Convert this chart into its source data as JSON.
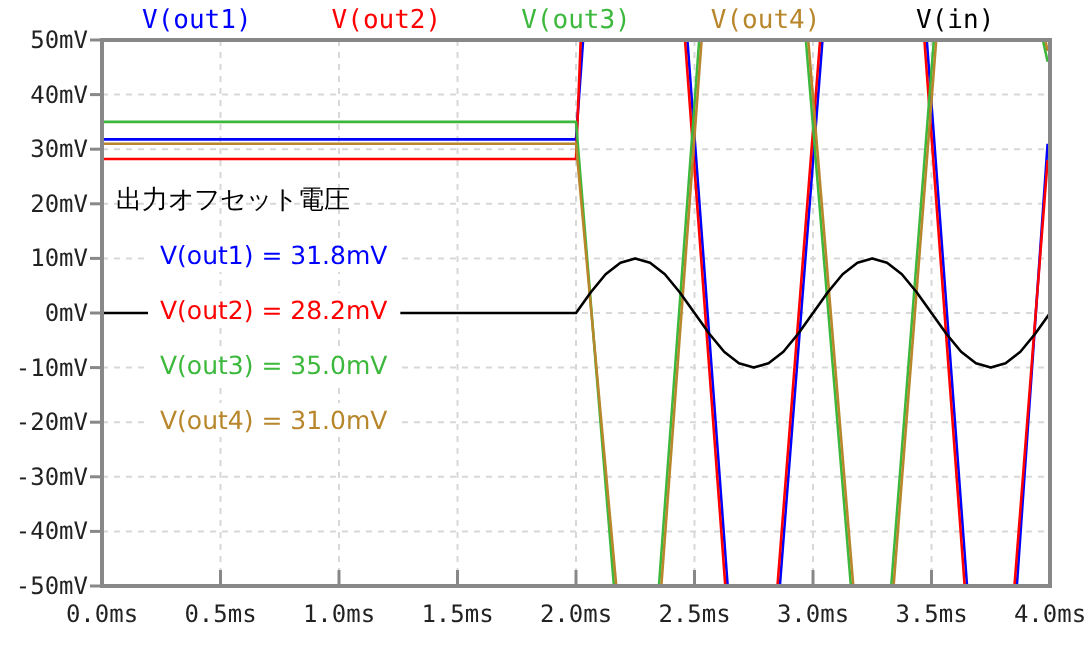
{
  "chart_data": {
    "type": "line",
    "xlim": [
      0,
      4
    ],
    "ylim": [
      -50,
      50
    ],
    "xticks": [
      {
        "value": 0,
        "label": "0.0ms"
      },
      {
        "value": 0.5,
        "label": "0.5ms"
      },
      {
        "value": 1,
        "label": "1.0ms"
      },
      {
        "value": 1.5,
        "label": "1.5ms"
      },
      {
        "value": 2,
        "label": "2.0ms"
      },
      {
        "value": 2.5,
        "label": "2.5ms"
      },
      {
        "value": 3,
        "label": "3.0ms"
      },
      {
        "value": 3.5,
        "label": "3.5ms"
      },
      {
        "value": 4,
        "label": "4.0ms"
      }
    ],
    "yticks": [
      {
        "value": -50,
        "label": "-50mV"
      },
      {
        "value": -40,
        "label": "-40mV"
      },
      {
        "value": -30,
        "label": "-30mV"
      },
      {
        "value": -20,
        "label": "-20mV"
      },
      {
        "value": -10,
        "label": "-10mV"
      },
      {
        "value": 0,
        "label": "0mV"
      },
      {
        "value": 10,
        "label": "10mV"
      },
      {
        "value": 20,
        "label": "20mV"
      },
      {
        "value": 30,
        "label": "30mV"
      },
      {
        "value": 40,
        "label": "40mV"
      },
      {
        "value": 50,
        "label": "50mV"
      }
    ],
    "grid": true,
    "legend": "top",
    "line_style": "solid",
    "annotations": [
      "出力オフセット電圧",
      "V(out1) = 31.8mV",
      "V(out2) = 28.2mV",
      "V(out3) = 35.0mV",
      "V(out4) = 31.0mV"
    ],
    "series": [
      {
        "name": "V(out1)",
        "color": "#0000ff",
        "x": [
          0,
          2.0,
          2.03,
          2.47,
          2.64,
          2.86,
          3.04,
          3.48,
          3.65,
          3.86,
          3.99
        ],
        "values": [
          31.8,
          31.8,
          50,
          50,
          -50,
          -50,
          50,
          50,
          -50,
          -50,
          31
        ]
      },
      {
        "name": "V(out2)",
        "color": "#ff0000",
        "x": [
          0,
          2.0,
          2.02,
          2.46,
          2.63,
          2.85,
          3.03,
          3.47,
          3.64,
          3.85,
          3.99
        ],
        "values": [
          28.2,
          28.2,
          50,
          50,
          -50,
          -50,
          50,
          50,
          -50,
          -50,
          28
        ]
      },
      {
        "name": "V(out3)",
        "color": "#3cb83c",
        "x": [
          0,
          2.0,
          2.16,
          2.35,
          2.52,
          2.97,
          3.16,
          3.33,
          3.51,
          3.97,
          3.99
        ],
        "values": [
          35.0,
          35.0,
          -50,
          -50,
          50,
          50,
          -50,
          -50,
          50,
          50,
          46
        ]
      },
      {
        "name": "V(out4)",
        "color": "#b8862b",
        "x": [
          0,
          2.0,
          2.17,
          2.36,
          2.53,
          2.98,
          3.17,
          3.34,
          3.52,
          3.98,
          3.99
        ],
        "values": [
          31.0,
          31.0,
          -50,
          -50,
          50,
          50,
          -50,
          -50,
          50,
          50,
          48
        ]
      },
      {
        "name": "V(in)",
        "color": "#000000",
        "x": [
          0,
          2,
          2.0625,
          2.125,
          2.1875,
          2.25,
          2.3125,
          2.375,
          2.4375,
          2.5,
          2.5625,
          2.625,
          2.6875,
          2.75,
          2.8125,
          2.875,
          2.9375,
          3,
          3.0625,
          3.125,
          3.1875,
          3.25,
          3.3125,
          3.375,
          3.4375,
          3.5,
          3.5625,
          3.625,
          3.6875,
          3.75,
          3.8125,
          3.875,
          3.9375,
          4
        ],
        "values": [
          0,
          0,
          3.8,
          7.1,
          9.2,
          10,
          9.2,
          7.1,
          3.8,
          0,
          -3.8,
          -7.1,
          -9.2,
          -10,
          -9.2,
          -7.1,
          -3.8,
          0,
          3.8,
          7.1,
          9.2,
          10,
          9.2,
          7.1,
          3.8,
          0,
          -3.8,
          -7.1,
          -9.2,
          -10,
          -9.2,
          -7.1,
          -3.8,
          0
        ]
      }
    ]
  }
}
